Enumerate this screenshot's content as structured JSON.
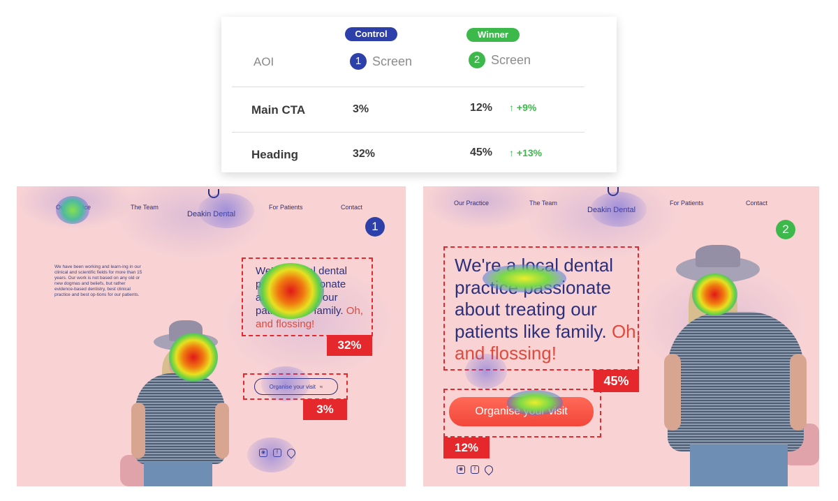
{
  "results": {
    "control_label": "Control",
    "winner_label": "Winner",
    "aoi_header": "AOI",
    "screen1": {
      "num": "1",
      "label": "Screen"
    },
    "screen2": {
      "num": "2",
      "label": "Screen"
    },
    "rows": [
      {
        "label": "Main CTA",
        "control": "3%",
        "winner": "12%",
        "delta": "+9%"
      },
      {
        "label": "Heading",
        "control": "32%",
        "winner": "45%",
        "delta": "+13%"
      }
    ],
    "accent_colors": {
      "control": "#2d3fa8",
      "winner": "#3cb94a",
      "highlight": "#e5282c"
    }
  },
  "screen_a": {
    "nav": [
      "Our Practice",
      "The Team",
      "For Patients",
      "Contact"
    ],
    "brand": "Deakin Dental",
    "badge": "1",
    "intro": "We have been working and learn-ing in our clinical and scientific fields for more than 15 years. Our work is not based on any old or new dogmas and beliefs, but rather evidence-based dentistry, best clinical practice and best op-tions for our patients.",
    "hero_line1": "We're a local dental practice passionate about treating our patients like family.",
    "hero_accent": "Oh, and flossing!",
    "heading_pct": "32%",
    "cta": "Organise your visit",
    "cta_pct": "3%",
    "social_icons": [
      "instagram-icon",
      "facebook-icon",
      "location-pin-icon"
    ]
  },
  "screen_b": {
    "nav": [
      "Our Practice",
      "The Team",
      "For Patients",
      "Contact"
    ],
    "brand": "Deakin Dental",
    "badge": "2",
    "hero_line1": "We're a local dental practice passionate about treating our patients like family.",
    "hero_accent": "Oh, and flossing!",
    "heading_pct": "45%",
    "cta": "Organise your visit",
    "cta_pct": "12%",
    "social_icons": [
      "instagram-icon",
      "facebook-icon",
      "location-pin-icon"
    ]
  }
}
